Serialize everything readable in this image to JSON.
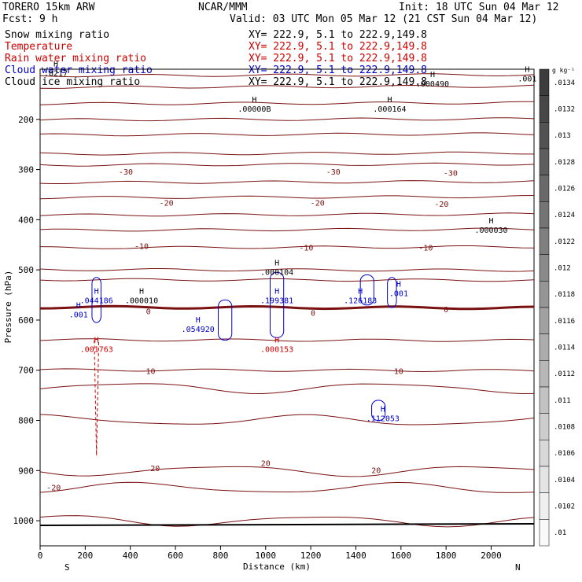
{
  "header": {
    "model": "TORERO   15km ARW",
    "center": "NCAR/MMM",
    "init": "Init: 18 UTC Sun 04 Mar 12",
    "fcst": "Fcst:     9 h",
    "valid": "Valid: 03 UTC Mon 05 Mar 12 (21 CST Sun 04 Mar 12)"
  },
  "fields": [
    {
      "name": "Snow mixing ratio",
      "xy": "XY= 222.9,  5.1 to 222.9,149.8",
      "color": "#000000"
    },
    {
      "name": "Temperature",
      "xy": "XY= 222.9,  5.1 to 222.9,149.8",
      "color": "#cc0000"
    },
    {
      "name": "Rain water mixing ratio",
      "xy": "XY= 222.9,  5.1 to 222.9,149.8",
      "color": "#cc0000"
    },
    {
      "name": "Cloud water mixing ratio",
      "xy": "XY= 222.9,  5.1 to 222.9,149.8",
      "color": "#0000cc"
    },
    {
      "name": "Cloud ice mixing ratio",
      "xy": "XY= 222.9,  5.1 to 222.9,149.8",
      "color": "#000000"
    }
  ],
  "chart_data": {
    "type": "cross-section contour",
    "xlabel": "Distance (km)",
    "ylabel": "Pressure (hPa)",
    "xlim": [
      0,
      2190
    ],
    "ylim": [
      1050,
      100
    ],
    "x_ticks": [
      "0",
      "200",
      "400",
      "600",
      "800",
      "1000",
      "1200",
      "1400",
      "1600",
      "1800",
      "2000"
    ],
    "y_ticks": [
      "200",
      "300",
      "400",
      "500",
      "600",
      "700",
      "800",
      "900",
      "1000"
    ],
    "endpoint_left": "S",
    "endpoint_right": "N",
    "colorbar": {
      "unit": "g kg⁻¹",
      "labels": [
        ".0134",
        ".0132",
        ".013",
        ".0128",
        ".0126",
        ".0124",
        ".0122",
        ".012",
        ".0118",
        ".0116",
        ".0114",
        ".0112",
        ".011",
        ".0108",
        ".0106",
        ".0104",
        ".0102",
        ".01"
      ]
    },
    "isotherms": [
      {
        "label": "-30",
        "p": 325
      },
      {
        "label": "-20",
        "p": 375
      },
      {
        "label": "-10",
        "p": 455
      },
      {
        "label": "0",
        "p": 575
      },
      {
        "label": "10",
        "p": 700
      },
      {
        "label": "20",
        "p": 900
      },
      {
        "label": "-20",
        "p": 935
      }
    ],
    "temperature_labels": [
      {
        "text": "-30",
        "x": 380,
        "p": 304
      },
      {
        "text": "-30",
        "x": 1300,
        "p": 304
      },
      {
        "text": "-30",
        "x": 1820,
        "p": 306
      },
      {
        "text": "-20",
        "x": 560,
        "p": 366
      },
      {
        "text": "-20",
        "x": 1230,
        "p": 366
      },
      {
        "text": "-20",
        "x": 1780,
        "p": 368
      },
      {
        "text": "-10",
        "x": 450,
        "p": 452
      },
      {
        "text": "-10",
        "x": 1180,
        "p": 455
      },
      {
        "text": "-10",
        "x": 1710,
        "p": 455
      },
      {
        "text": "0",
        "x": 480,
        "p": 582
      },
      {
        "text": "0",
        "x": 1210,
        "p": 585
      },
      {
        "text": "0",
        "x": 1800,
        "p": 578
      },
      {
        "text": "10",
        "x": 490,
        "p": 701
      },
      {
        "text": "10",
        "x": 1590,
        "p": 701
      },
      {
        "text": "20",
        "x": 510,
        "p": 895
      },
      {
        "text": "20",
        "x": 1000,
        "p": 885
      },
      {
        "text": "20",
        "x": 1490,
        "p": 899
      },
      {
        "text": "-20",
        "x": 60,
        "p": 933
      }
    ],
    "maxima": [
      {
        "text": ".000490",
        "x": 1740,
        "p": 128,
        "color": "#000000"
      },
      {
        "text": ".001",
        "x": 2160,
        "p": 118,
        "color": "#000000"
      },
      {
        "text": ".00000B",
        "x": 950,
        "p": 178,
        "color": "#000000"
      },
      {
        "text": ".000164",
        "x": 1550,
        "p": 178,
        "color": "#000000"
      },
      {
        "text": ".000030",
        "x": 2000,
        "p": 420,
        "color": "#000000"
      },
      {
        "text": ".000104",
        "x": 1050,
        "p": 504,
        "color": "#000000"
      },
      {
        "text": ".044186",
        "x": 250,
        "p": 560,
        "color": "#0000cc"
      },
      {
        "text": ".000010",
        "x": 450,
        "p": 560,
        "color": "#000000"
      },
      {
        "text": ".199381",
        "x": 1050,
        "p": 560,
        "color": "#0000cc"
      },
      {
        "text": ".126183",
        "x": 1420,
        "p": 560,
        "color": "#0000cc"
      },
      {
        "text": ".001",
        "x": 1590,
        "p": 546,
        "color": "#0000cc"
      },
      {
        "text": ".001",
        "x": 170,
        "p": 588,
        "color": "#0000cc"
      },
      {
        "text": ".054920",
        "x": 700,
        "p": 617,
        "color": "#0000cc"
      },
      {
        "text": ".001763",
        "x": 250,
        "p": 657,
        "color": "#cc0000"
      },
      {
        "text": ".000153",
        "x": 1050,
        "p": 657,
        "color": "#cc0000"
      },
      {
        "text": ".112053",
        "x": 1520,
        "p": 795,
        "color": "#0000cc"
      },
      {
        "text": ".8217",
        "x": 70,
        "p": 107,
        "color": "#000000"
      }
    ]
  }
}
